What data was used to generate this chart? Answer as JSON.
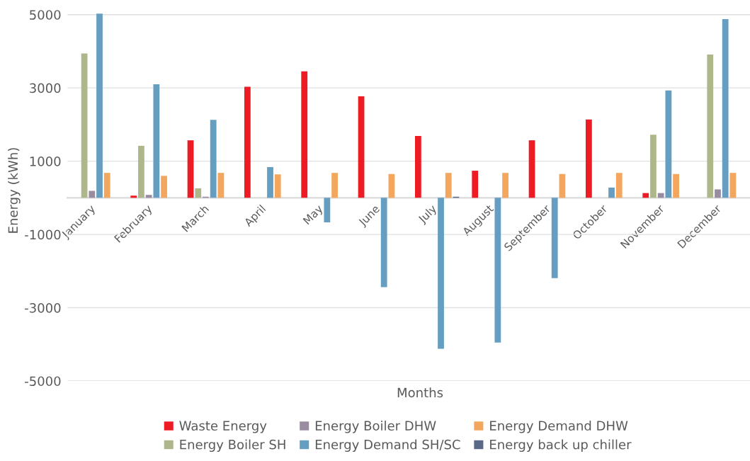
{
  "chart_data": {
    "type": "bar",
    "xlabel": "Months",
    "ylabel": "Energy (kWh)",
    "categories": [
      "January",
      "February",
      "March",
      "April",
      "May",
      "June",
      "July",
      "August",
      "September",
      "October",
      "November",
      "December"
    ],
    "series": [
      {
        "name": "Waste Energy",
        "color": "#ed1c24",
        "values": [
          null,
          60,
          1570,
          3030,
          3450,
          2770,
          1690,
          740,
          1570,
          2140,
          130,
          null
        ]
      },
      {
        "name": "Energy Boiler SH",
        "color": "#adb78b",
        "values": [
          3940,
          1420,
          260,
          null,
          null,
          null,
          null,
          null,
          null,
          null,
          1720,
          3910
        ]
      },
      {
        "name": "Energy Boiler DHW",
        "color": "#9a8ca0",
        "values": [
          190,
          80,
          30,
          null,
          null,
          null,
          null,
          null,
          null,
          null,
          130,
          230
        ]
      },
      {
        "name": "Energy Demand SH/SC",
        "color": "#659ec0",
        "values": [
          5030,
          3100,
          2130,
          840,
          -670,
          -2440,
          -4120,
          -3950,
          -2190,
          280,
          2930,
          4880
        ]
      },
      {
        "name": "Energy Demand DHW",
        "color": "#f2a65e",
        "values": [
          680,
          600,
          680,
          640,
          680,
          650,
          680,
          680,
          650,
          680,
          650,
          680
        ]
      },
      {
        "name": "Energy back up chiller",
        "color": "#5a6a86",
        "values": [
          null,
          null,
          null,
          null,
          null,
          null,
          30,
          null,
          null,
          null,
          null,
          null
        ]
      }
    ],
    "ylim": [
      -5000,
      5400
    ],
    "yticks": [
      -5000,
      -3000,
      -1000,
      1000,
      3000,
      5000
    ],
    "grid": "y",
    "legend": "bottom"
  }
}
